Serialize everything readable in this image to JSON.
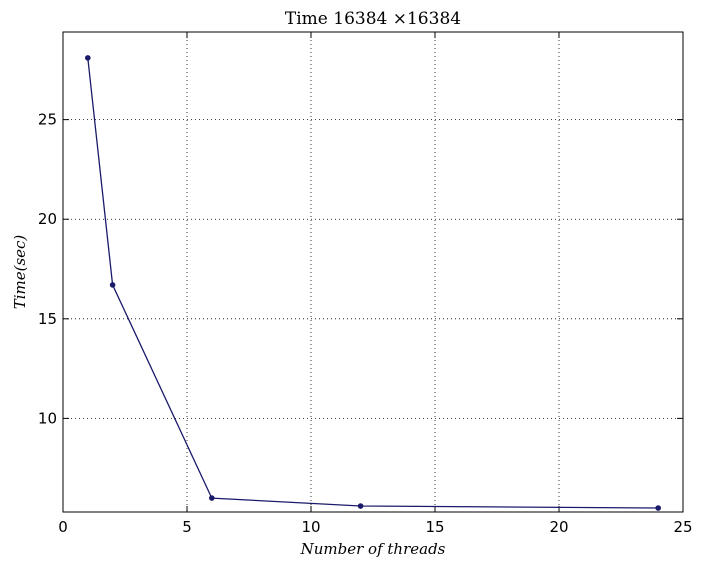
{
  "chart_data": {
    "type": "line",
    "title": "Time 16384 ×16384",
    "xlabel": "Number of threads",
    "ylabel": "Time(sec)",
    "xlim": [
      0,
      25
    ],
    "ylim": [
      5.3,
      29.4
    ],
    "xticks": [
      0,
      5,
      10,
      15,
      20,
      25
    ],
    "yticks": [
      10,
      15,
      20,
      25
    ],
    "grid": true,
    "series": [
      {
        "x": [
          1,
          2,
          6,
          12,
          24
        ],
        "y": [
          28.1,
          16.7,
          6.0,
          5.6,
          5.5
        ],
        "color": "#1a1a6b",
        "marker": "dot"
      }
    ]
  }
}
